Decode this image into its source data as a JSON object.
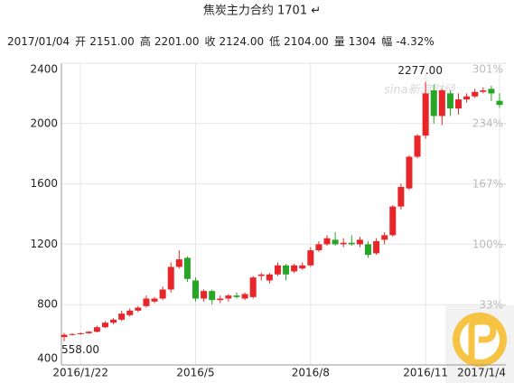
{
  "chart_data": {
    "type": "candlestick",
    "title": "焦炭主力合约 1701 ↵",
    "info": {
      "date": "2017/01/04",
      "items": [
        {
          "label": "开",
          "value": "2151.00"
        },
        {
          "label": "高",
          "value": "2201.00"
        },
        {
          "label": "收",
          "value": "2124.00"
        },
        {
          "label": "低",
          "value": "2104.00"
        },
        {
          "label": "量",
          "value": "1304"
        },
        {
          "label": "幅",
          "value": "-4.32%"
        }
      ]
    },
    "watermark": "sina新浪财经",
    "categories": [
      null,
      null,
      "2016/1/22",
      null,
      null,
      null,
      null,
      null,
      null,
      null,
      null,
      null,
      null,
      null,
      null,
      null,
      "2016/5",
      null,
      null,
      null,
      null,
      null,
      null,
      null,
      null,
      null,
      null,
      null,
      null,
      null,
      "2016/8",
      null,
      null,
      null,
      null,
      null,
      null,
      null,
      null,
      null,
      null,
      null,
      null,
      null,
      "2016/11",
      null,
      null,
      null,
      null,
      null,
      null,
      null,
      null,
      "2017/1/4"
    ],
    "open": [
      585,
      600,
      605,
      610,
      620,
      650,
      680,
      700,
      730,
      760,
      790,
      820,
      840,
      900,
      1050,
      1110,
      960,
      840,
      890,
      830,
      840,
      860,
      840,
      850,
      990,
      960,
      1000,
      1060,
      1020,
      1040,
      1060,
      1160,
      1200,
      1230,
      1200,
      1210,
      1200,
      1200,
      1140,
      1230,
      1260,
      1450,
      1570,
      1780,
      1920,
      2220,
      2050,
      2200,
      2100,
      2160,
      2180,
      2210,
      2230,
      2151
    ],
    "high": [
      612,
      610,
      615,
      625,
      660,
      690,
      710,
      760,
      775,
      790,
      860,
      850,
      920,
      1080,
      1160,
      1120,
      980,
      900,
      900,
      860,
      870,
      880,
      880,
      990,
      1010,
      1010,
      1080,
      1070,
      1070,
      1080,
      1180,
      1220,
      1260,
      1280,
      1240,
      1260,
      1250,
      1220,
      1240,
      1280,
      1460,
      1600,
      1790,
      1930,
      2277,
      2260,
      2230,
      2220,
      2200,
      2200,
      2230,
      2240,
      2250,
      2201
    ],
    "low": [
      558,
      595,
      600,
      605,
      615,
      645,
      670,
      690,
      720,
      750,
      780,
      810,
      830,
      880,
      1040,
      950,
      820,
      820,
      800,
      810,
      820,
      840,
      830,
      840,
      960,
      940,
      990,
      960,
      1010,
      1030,
      1050,
      1150,
      1190,
      1190,
      1180,
      1190,
      1180,
      1110,
      1130,
      1200,
      1250,
      1430,
      1560,
      1770,
      1900,
      2000,
      1990,
      2050,
      2060,
      2140,
      2170,
      2200,
      2150,
      2104
    ],
    "close": [
      600,
      605,
      610,
      620,
      650,
      680,
      700,
      740,
      760,
      780,
      840,
      840,
      900,
      1050,
      1100,
      970,
      840,
      890,
      830,
      840,
      860,
      850,
      870,
      980,
      1000,
      1000,
      1060,
      1000,
      1060,
      1060,
      1160,
      1200,
      1240,
      1200,
      1210,
      1200,
      1230,
      1130,
      1220,
      1260,
      1450,
      1580,
      1780,
      1920,
      2200,
      2050,
      2220,
      2100,
      2160,
      2180,
      2210,
      2220,
      2200,
      2124
    ],
    "up_color": "#e8262a",
    "down_color": "#26a526",
    "ylim": [
      400,
      2400
    ],
    "yticks": [
      400,
      800,
      1200,
      1600,
      2000,
      2400
    ],
    "y2lim": [
      -33,
      301
    ],
    "y2ticks": [
      {
        "value": 33,
        "label": "33%"
      },
      {
        "value": 100,
        "label": "100%"
      },
      {
        "value": 167,
        "label": "167%"
      },
      {
        "value": 234,
        "label": "234%"
      },
      {
        "value": 301,
        "label": "301%"
      }
    ],
    "annotations": [
      {
        "index": 44,
        "text": "2277.00"
      },
      {
        "index": 0,
        "text": "558.00"
      }
    ],
    "grid": true
  }
}
